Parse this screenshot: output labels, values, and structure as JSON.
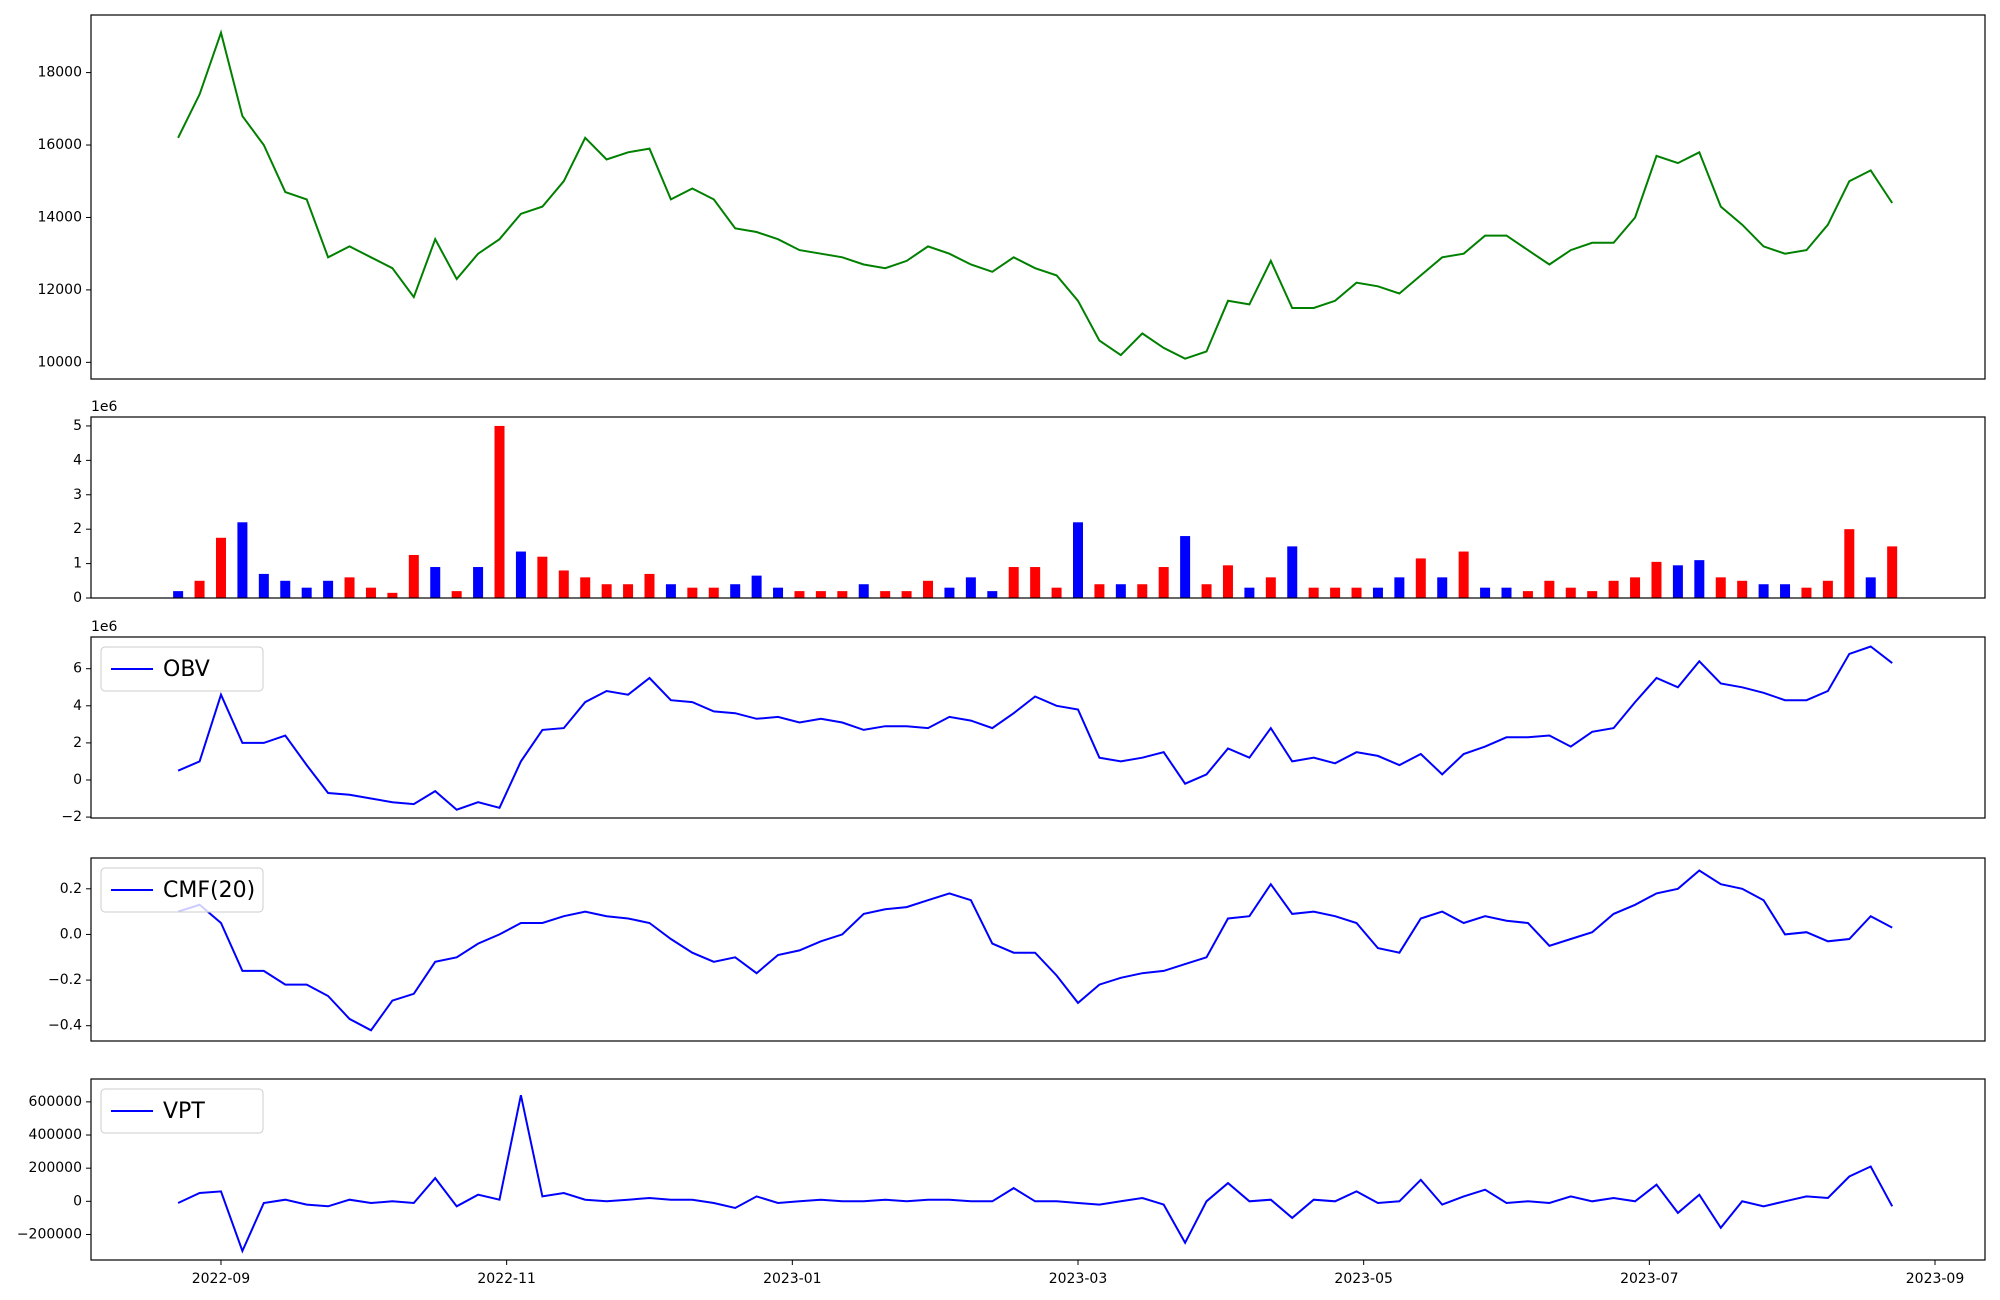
{
  "chart_data": [
    {
      "type": "line",
      "x": [
        7.7,
        7.85,
        8,
        8.15,
        8.3,
        8.45,
        8.6,
        8.75,
        8.9,
        9.05,
        9.2,
        9.35,
        9.5,
        9.65,
        9.8,
        9.95,
        10.1,
        10.25,
        10.4,
        10.55,
        10.7,
        10.85,
        11,
        11.15,
        11.3,
        11.45,
        11.6,
        11.75,
        11.9,
        12.05,
        12.2,
        12.35,
        12.5,
        12.65,
        12.8,
        12.95,
        13.1,
        13.25,
        13.4,
        13.55,
        13.7,
        13.85,
        14,
        14.15,
        14.3,
        14.45,
        14.6,
        14.75,
        14.9,
        15.05,
        15.2,
        15.35,
        15.5,
        15.65,
        15.8,
        15.95,
        16.1,
        16.25,
        16.4,
        16.55,
        16.7,
        16.85,
        17,
        17.15,
        17.3,
        17.45,
        17.6,
        17.75,
        17.9,
        18.05,
        18.2,
        18.35,
        18.5,
        18.65,
        18.8,
        18.95,
        19.1,
        19.25,
        19.4,
        19.55,
        19.7
      ],
      "xlim": [
        7.09,
        20.35
      ],
      "ylim": [
        9540,
        19590
      ],
      "yticks": [
        10000,
        12000,
        14000,
        16000,
        18000
      ],
      "series": [
        {
          "color": "green",
          "values": [
            16200,
            17400,
            19100,
            16800,
            16000,
            14700,
            14500,
            12900,
            13200,
            12900,
            12600,
            11800,
            13400,
            12300,
            13000,
            13400,
            14100,
            14300,
            15000,
            16200,
            15600,
            15800,
            15900,
            14500,
            14800,
            14500,
            13700,
            13600,
            13400,
            13100,
            13000,
            12900,
            12700,
            12600,
            12800,
            13200,
            13000,
            12700,
            12500,
            12900,
            12600,
            12400,
            11700,
            10600,
            10200,
            10800,
            10400,
            10100,
            10300,
            11700,
            11600,
            12800,
            11500,
            11500,
            11700,
            12200,
            12100,
            11900,
            12400,
            12900,
            13000,
            13500,
            13500,
            13100,
            12700,
            13100,
            13300,
            13300,
            14000,
            15700,
            15500,
            15800,
            14300,
            13800,
            13200,
            13000,
            13100,
            13800,
            15000,
            15300,
            14400
          ]
        }
      ]
    },
    {
      "type": "bar",
      "x": [
        7.7,
        7.85,
        8,
        8.15,
        8.3,
        8.45,
        8.6,
        8.75,
        8.9,
        9.05,
        9.2,
        9.35,
        9.5,
        9.65,
        9.8,
        9.95,
        10.1,
        10.25,
        10.4,
        10.55,
        10.7,
        10.85,
        11,
        11.15,
        11.3,
        11.45,
        11.6,
        11.75,
        11.9,
        12.05,
        12.2,
        12.35,
        12.5,
        12.65,
        12.8,
        12.95,
        13.1,
        13.25,
        13.4,
        13.55,
        13.7,
        13.85,
        14,
        14.15,
        14.3,
        14.45,
        14.6,
        14.75,
        14.9,
        15.05,
        15.2,
        15.35,
        15.5,
        15.65,
        15.8,
        15.95,
        16.1,
        16.25,
        16.4,
        16.55,
        16.7,
        16.85,
        17,
        17.15,
        17.3,
        17.45,
        17.6,
        17.75,
        17.9,
        18.05,
        18.2,
        18.35,
        18.5,
        18.65,
        18.8,
        18.95,
        19.1,
        19.25,
        19.4,
        19.55,
        19.7
      ],
      "xlim": [
        7.09,
        20.35
      ],
      "ylim": [
        0,
        5.26
      ],
      "yticks": [
        0,
        1,
        2,
        3,
        4,
        5
      ],
      "offset_label": "1e6",
      "values": [
        0.2,
        0.5,
        1.75,
        2.2,
        0.7,
        0.5,
        0.3,
        0.5,
        0.6,
        0.3,
        0.15,
        1.25,
        0.9,
        0.2,
        0.9,
        5.0,
        1.35,
        1.2,
        0.8,
        0.6,
        0.4,
        0.4,
        0.7,
        0.4,
        0.3,
        0.3,
        0.4,
        0.65,
        0.3,
        0.2,
        0.2,
        0.2,
        0.4,
        0.2,
        0.2,
        0.5,
        0.3,
        0.6,
        0.2,
        0.9,
        0.9,
        0.3,
        2.2,
        0.4,
        0.4,
        0.4,
        0.9,
        1.8,
        0.4,
        0.95,
        0.3,
        0.6,
        1.5,
        0.3,
        0.3,
        0.3,
        0.3,
        0.6,
        1.15,
        0.6,
        1.35,
        0.3,
        0.3,
        0.2,
        0.5,
        0.3,
        0.2,
        0.5,
        0.6,
        1.05,
        0.95,
        1.1,
        0.6,
        0.5,
        0.4,
        0.4,
        0.3,
        0.5,
        2.0,
        0.6,
        1.5
      ],
      "colors": [
        "blue",
        "red",
        "red",
        "blue",
        "blue",
        "blue",
        "blue",
        "blue",
        "red",
        "red",
        "red",
        "red",
        "blue",
        "red",
        "blue",
        "red",
        "blue",
        "red",
        "red",
        "red",
        "red",
        "red",
        "red",
        "blue",
        "red",
        "red",
        "blue",
        "blue",
        "blue",
        "red",
        "red",
        "red",
        "blue",
        "red",
        "red",
        "red",
        "blue",
        "blue",
        "blue",
        "red",
        "red",
        "red",
        "blue",
        "red",
        "blue",
        "red",
        "red",
        "blue",
        "red",
        "red",
        "blue",
        "red",
        "blue",
        "red",
        "red",
        "red",
        "blue",
        "blue",
        "red",
        "blue",
        "red",
        "blue",
        "blue",
        "red",
        "red",
        "red",
        "red",
        "red",
        "red",
        "red",
        "blue",
        "blue",
        "red",
        "red",
        "blue",
        "blue",
        "red",
        "red",
        "red",
        "blue",
        "red"
      ]
    },
    {
      "type": "line",
      "x": [
        7.7,
        7.85,
        8,
        8.15,
        8.3,
        8.45,
        8.6,
        8.75,
        8.9,
        9.05,
        9.2,
        9.35,
        9.5,
        9.65,
        9.8,
        9.95,
        10.1,
        10.25,
        10.4,
        10.55,
        10.7,
        10.85,
        11,
        11.15,
        11.3,
        11.45,
        11.6,
        11.75,
        11.9,
        12.05,
        12.2,
        12.35,
        12.5,
        12.65,
        12.8,
        12.95,
        13.1,
        13.25,
        13.4,
        13.55,
        13.7,
        13.85,
        14,
        14.15,
        14.3,
        14.45,
        14.6,
        14.75,
        14.9,
        15.05,
        15.2,
        15.35,
        15.5,
        15.65,
        15.8,
        15.95,
        16.1,
        16.25,
        16.4,
        16.55,
        16.7,
        16.85,
        17,
        17.15,
        17.3,
        17.45,
        17.6,
        17.75,
        17.9,
        18.05,
        18.2,
        18.35,
        18.5,
        18.65,
        18.8,
        18.95,
        19.1,
        19.25,
        19.4,
        19.55,
        19.7
      ],
      "xlim": [
        7.09,
        20.35
      ],
      "ylim": [
        -2.05,
        7.71
      ],
      "yticks": [
        {
          "value": -2,
          "label": "−2"
        },
        0,
        2,
        4,
        6
      ],
      "offset_label": "1e6",
      "series": [
        {
          "name": "OBV",
          "color": "blue",
          "values": [
            0.5,
            1.0,
            4.6,
            2.0,
            2.0,
            2.4,
            0.8,
            -0.7,
            -0.8,
            -1.0,
            -1.2,
            -1.3,
            -0.6,
            -1.6,
            -1.2,
            -1.5,
            1.0,
            2.7,
            2.8,
            4.2,
            4.8,
            4.6,
            5.5,
            4.3,
            4.2,
            3.7,
            3.6,
            3.3,
            3.4,
            3.1,
            3.3,
            3.1,
            2.7,
            2.9,
            2.9,
            2.8,
            3.4,
            3.2,
            2.8,
            3.6,
            4.5,
            4.0,
            3.8,
            1.2,
            1.0,
            1.2,
            1.5,
            -0.2,
            0.3,
            1.7,
            1.2,
            2.8,
            1.0,
            1.2,
            0.9,
            1.5,
            1.3,
            0.8,
            1.4,
            0.3,
            1.4,
            1.8,
            2.3,
            2.3,
            2.4,
            1.8,
            2.6,
            2.8,
            4.2,
            5.5,
            5.0,
            6.4,
            5.2,
            5.0,
            4.7,
            4.3,
            4.3,
            4.8,
            6.8,
            7.2,
            6.3
          ]
        }
      ]
    },
    {
      "type": "line",
      "x": [
        7.7,
        7.85,
        8,
        8.15,
        8.3,
        8.45,
        8.6,
        8.75,
        8.9,
        9.05,
        9.2,
        9.35,
        9.5,
        9.65,
        9.8,
        9.95,
        10.1,
        10.25,
        10.4,
        10.55,
        10.7,
        10.85,
        11,
        11.15,
        11.3,
        11.45,
        11.6,
        11.75,
        11.9,
        12.05,
        12.2,
        12.35,
        12.5,
        12.65,
        12.8,
        12.95,
        13.1,
        13.25,
        13.4,
        13.55,
        13.7,
        13.85,
        14,
        14.15,
        14.3,
        14.45,
        14.6,
        14.75,
        14.9,
        15.05,
        15.2,
        15.35,
        15.5,
        15.65,
        15.8,
        15.95,
        16.1,
        16.25,
        16.4,
        16.55,
        16.7,
        16.85,
        17,
        17.15,
        17.3,
        17.45,
        17.6,
        17.75,
        17.9,
        18.05,
        18.2,
        18.35,
        18.5,
        18.65,
        18.8,
        18.95,
        19.1,
        19.25,
        19.4,
        19.55,
        19.7
      ],
      "xlim": [
        7.09,
        20.35
      ],
      "ylim": [
        -0.467,
        0.335
      ],
      "yticks": [
        {
          "value": -0.4,
          "label": "−0.4"
        },
        {
          "value": -0.2,
          "label": "−0.2"
        },
        {
          "value": 0,
          "label": "0.0"
        },
        0.2
      ],
      "series": [
        {
          "name": "CMF(20)",
          "color": "blue",
          "values": [
            0.1,
            0.13,
            0.05,
            -0.16,
            -0.16,
            -0.22,
            -0.22,
            -0.27,
            -0.37,
            -0.42,
            -0.29,
            -0.26,
            -0.12,
            -0.1,
            -0.04,
            0.0,
            0.05,
            0.05,
            0.08,
            0.1,
            0.08,
            0.07,
            0.05,
            -0.02,
            -0.08,
            -0.12,
            -0.1,
            -0.17,
            -0.09,
            -0.07,
            -0.03,
            0.0,
            0.09,
            0.11,
            0.12,
            0.15,
            0.18,
            0.15,
            -0.04,
            -0.08,
            -0.08,
            -0.18,
            -0.3,
            -0.22,
            -0.19,
            -0.17,
            -0.16,
            -0.13,
            -0.1,
            0.07,
            0.08,
            0.22,
            0.09,
            0.1,
            0.08,
            0.05,
            -0.06,
            -0.08,
            0.07,
            0.1,
            0.05,
            0.08,
            0.06,
            0.05,
            -0.05,
            -0.02,
            0.01,
            0.09,
            0.13,
            0.18,
            0.2,
            0.28,
            0.22,
            0.2,
            0.15,
            0.0,
            0.01,
            -0.03,
            -0.02,
            0.08,
            0.03
          ]
        }
      ]
    },
    {
      "type": "line",
      "x": [
        7.7,
        7.85,
        8,
        8.15,
        8.3,
        8.45,
        8.6,
        8.75,
        8.9,
        9.05,
        9.2,
        9.35,
        9.5,
        9.65,
        9.8,
        9.95,
        10.1,
        10.25,
        10.4,
        10.55,
        10.7,
        10.85,
        11,
        11.15,
        11.3,
        11.45,
        11.6,
        11.75,
        11.9,
        12.05,
        12.2,
        12.35,
        12.5,
        12.65,
        12.8,
        12.95,
        13.1,
        13.25,
        13.4,
        13.55,
        13.7,
        13.85,
        14,
        14.15,
        14.3,
        14.45,
        14.6,
        14.75,
        14.9,
        15.05,
        15.2,
        15.35,
        15.5,
        15.65,
        15.8,
        15.95,
        16.1,
        16.25,
        16.4,
        16.55,
        16.7,
        16.85,
        17,
        17.15,
        17.3,
        17.45,
        17.6,
        17.75,
        17.9,
        18.05,
        18.2,
        18.35,
        18.5,
        18.65,
        18.8,
        18.95,
        19.1,
        19.25,
        19.4,
        19.55,
        19.7
      ],
      "xlim": [
        7.09,
        20.35
      ],
      "xticks": [
        {
          "value": 8,
          "label": "2022-09"
        },
        {
          "value": 10,
          "label": "2022-11"
        },
        {
          "value": 12,
          "label": "2023-01"
        },
        {
          "value": 14,
          "label": "2023-03"
        },
        {
          "value": 16,
          "label": "2023-05"
        },
        {
          "value": 18,
          "label": "2023-07"
        },
        {
          "value": 20,
          "label": "2023-09"
        }
      ],
      "ylim": [
        -354000,
        738000
      ],
      "yticks": [
        {
          "value": -200000,
          "label": "−200000"
        },
        0,
        200000,
        400000,
        600000
      ],
      "series": [
        {
          "name": "VPT",
          "color": "blue",
          "values": [
            -10000,
            50000,
            60000,
            -300000,
            -10000,
            10000,
            -20000,
            -30000,
            10000,
            -10000,
            0,
            -10000,
            140000,
            -30000,
            40000,
            10000,
            640000,
            30000,
            50000,
            10000,
            0,
            10000,
            20000,
            10000,
            10000,
            -10000,
            -40000,
            30000,
            -10000,
            0,
            10000,
            0,
            0,
            10000,
            0,
            10000,
            10000,
            0,
            0,
            80000,
            0,
            0,
            -10000,
            -20000,
            0,
            20000,
            -20000,
            -250000,
            0,
            110000,
            0,
            10000,
            -100000,
            10000,
            0,
            60000,
            -10000,
            0,
            130000,
            -20000,
            30000,
            70000,
            -10000,
            0,
            -10000,
            30000,
            0,
            20000,
            0,
            100000,
            -70000,
            40000,
            -160000,
            0,
            -30000,
            0,
            30000,
            20000,
            150000,
            210000,
            -30000
          ]
        }
      ]
    }
  ]
}
